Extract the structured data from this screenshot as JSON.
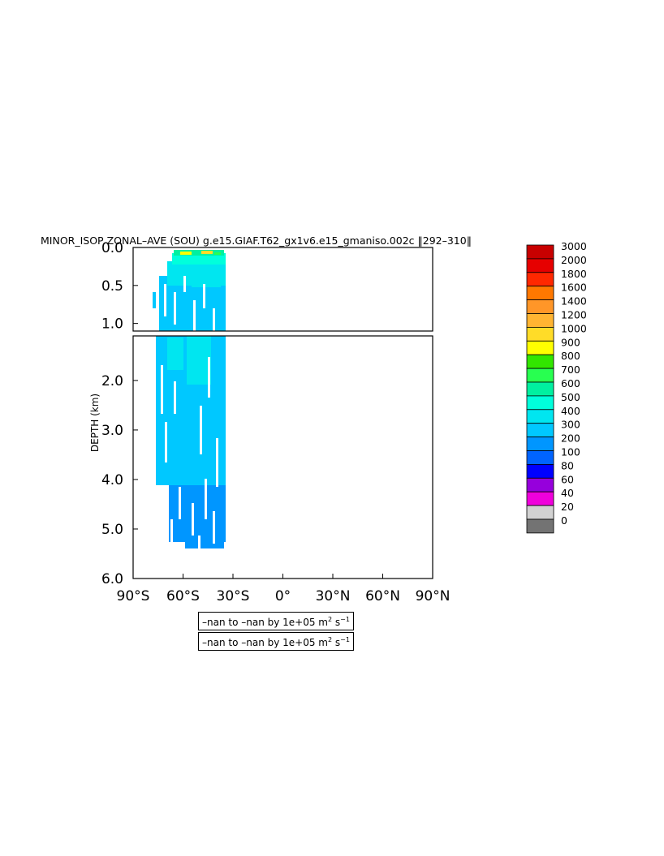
{
  "chart_data": {
    "type": "heatmap",
    "title": "MINOR_ISOP ZONAL–AVE (SOU) g.e15.GIAF.T62_gx1v6.e15_gmaniso.002c ‖292–310‖",
    "ylabel": "DEPTH (km)",
    "xlabel": "",
    "x_ticks": [
      "90°S",
      "60°S",
      "30°S",
      "0°",
      "30°N",
      "60°N",
      "90°N"
    ],
    "x_range": [
      -90,
      90
    ],
    "upper_panel": {
      "y_range": [
        0,
        1.1
      ],
      "y_ticks": [
        "0.0",
        "0.5",
        "1.0"
      ],
      "y_values": [
        0,
        0.5,
        1.0
      ]
    },
    "lower_panel": {
      "y_range": [
        1.1,
        6.0
      ],
      "y_ticks": [
        "2.0",
        "3.0",
        "4.0",
        "5.0",
        "6.0"
      ],
      "y_values": [
        2,
        3,
        4,
        5,
        6
      ]
    },
    "colorbar": {
      "levels": [
        "3000",
        "2000",
        "1800",
        "1600",
        "1400",
        "1200",
        "1000",
        "900",
        "800",
        "700",
        "600",
        "500",
        "400",
        "300",
        "200",
        "100",
        "80",
        "60",
        "40",
        "20",
        "0"
      ],
      "colors": [
        "#c80000",
        "#e60000",
        "#ff2800",
        "#ff7800",
        "#ff9628",
        "#ffb432",
        "#ffdc28",
        "#ffff00",
        "#32e600",
        "#28ff50",
        "#00f0a0",
        "#00ffdc",
        "#00e6f0",
        "#00c8ff",
        "#0096ff",
        "#0064ff",
        "#0000ff",
        "#9600dc",
        "#f000dc",
        "#d2d2d2",
        "#737373"
      ]
    },
    "notes": [
      {
        "prefix": "–nan to –nan by 1e+05 m",
        "exp1": "2",
        "mid": " s",
        "exp2": "−1"
      },
      {
        "prefix": "–nan to –nan by 1e+05 m",
        "exp1": "2",
        "mid": " s",
        "exp2": "−1"
      }
    ]
  }
}
